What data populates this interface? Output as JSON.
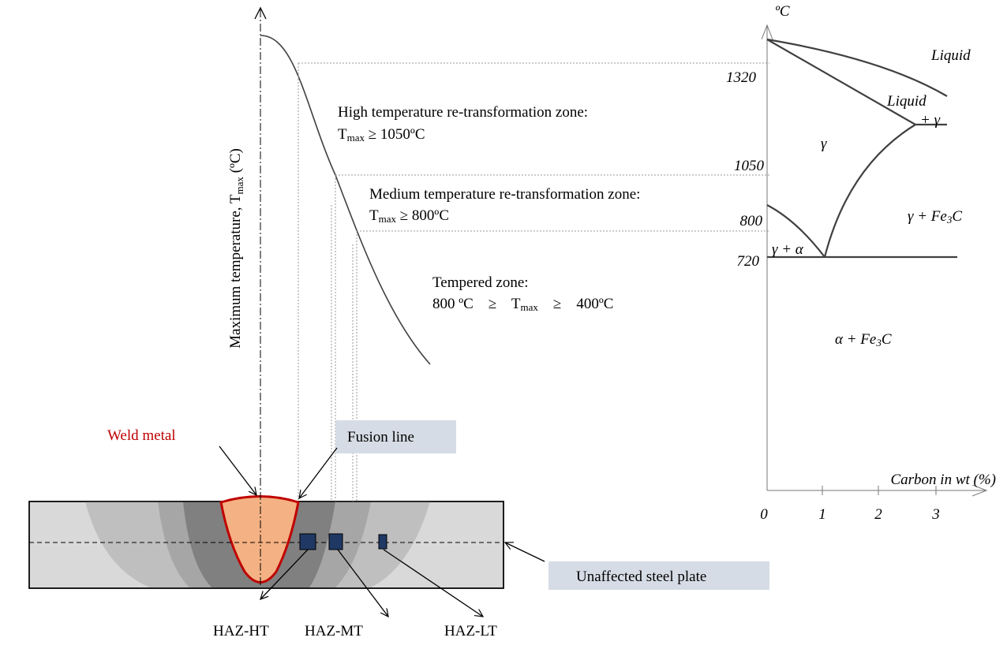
{
  "temperature_chart": {
    "y_axis_label": {
      "main": "Maximum temperature, T",
      "sub": "max",
      "unit": " (ºC)"
    },
    "zones": [
      {
        "title": "High temperature re-transformation zone:",
        "lead": "T",
        "sub": "max",
        "rest": " ≥ 1050ºC"
      },
      {
        "title": "Medium temperature re-transformation zone:",
        "lead": "T",
        "sub": "max",
        "rest": " ≥ 800ºC"
      },
      {
        "title": "Tempered zone:",
        "lead": "800 ºC    ≥    T",
        "sub": "max",
        "rest": "    ≥    400ºC"
      }
    ]
  },
  "phase_diagram": {
    "y_unit": "ºC",
    "y_labels": [
      "1320",
      "1050",
      "800",
      "720"
    ],
    "x_label": "Carbon in wt (%)",
    "x_labels": [
      "0",
      "1",
      "2",
      "3"
    ],
    "regions": {
      "liquid": "Liquid",
      "liquid_gamma": "Liquid",
      "liquid_gamma_2": "+ γ",
      "gamma": "γ",
      "gamma_fe3c": {
        "lead": "γ + Fe",
        "sub": "3",
        "rest": "C"
      },
      "gamma_alpha": "γ + α",
      "alpha_fe3c": {
        "lead": "α + Fe",
        "sub": "3",
        "rest": "C"
      }
    }
  },
  "weld": {
    "weld_metal": "Weld metal",
    "fusion_line": "Fusion line",
    "unaffected": "Unaffected steel plate",
    "haz": [
      "HAZ-HT",
      "HAZ-MT",
      "HAZ-LT"
    ]
  }
}
